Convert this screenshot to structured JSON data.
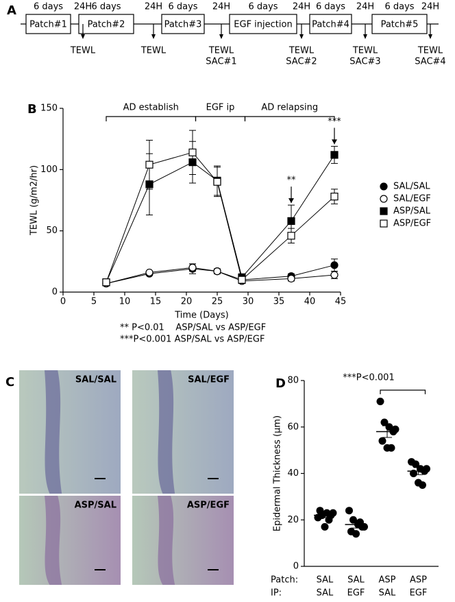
{
  "timeline": {
    "panel_label": "A",
    "stages": [
      {
        "label": "Patch#1",
        "duration": "6 days"
      },
      {
        "label": "Patch#2",
        "duration": "6 days"
      },
      {
        "label": "Patch#3",
        "duration": "6 days"
      },
      {
        "label": "EGF injection",
        "duration": "6 days"
      },
      {
        "label": "Patch#4",
        "duration": "6 days"
      },
      {
        "label": "Patch#5",
        "duration": "6 days"
      }
    ],
    "gaps": [
      "24H",
      "24H",
      "24H",
      "24H",
      "24H",
      "24H"
    ],
    "measurements": [
      [
        "TEWL"
      ],
      [
        "TEWL"
      ],
      [
        "TEWL",
        "SAC#1"
      ],
      [
        "TEWL",
        "SAC#2"
      ],
      [
        "TEWL",
        "SAC#3"
      ],
      [
        "TEWL",
        "SAC#4"
      ]
    ]
  },
  "histology": {
    "panel_label": "C",
    "images": [
      "SAL/SAL",
      "SAL/EGF",
      "ASP/SAL",
      "ASP/EGF"
    ]
  },
  "chart_data": [
    {
      "type": "line",
      "panel_label": "B",
      "x_label": "Time (Days)",
      "y_label": "TEWL (g/m2/hr)",
      "x": [
        7,
        14,
        21,
        25,
        29,
        37,
        44
      ],
      "series": [
        {
          "name": "SAL/SAL",
          "marker": "circle",
          "filled": true,
          "color": "#000000",
          "values": [
            7,
            15,
            19,
            17,
            10,
            13,
            22
          ],
          "errors": [
            1,
            1,
            4,
            2,
            1,
            2,
            5
          ]
        },
        {
          "name": "SAL/EGF",
          "marker": "circle",
          "filled": false,
          "color": "#000000",
          "values": [
            7,
            16,
            20,
            17,
            9,
            11,
            14
          ],
          "errors": [
            1,
            1,
            3,
            2,
            1,
            2,
            3
          ]
        },
        {
          "name": "ASP/SAL",
          "marker": "square",
          "filled": true,
          "color": "#000000",
          "values": [
            8,
            88,
            106,
            91,
            12,
            58,
            112
          ],
          "errors": [
            1,
            25,
            17,
            12,
            3,
            13,
            7
          ]
        },
        {
          "name": "ASP/EGF",
          "marker": "square",
          "filled": false,
          "color": "#000000",
          "values": [
            8,
            104,
            114,
            90,
            10,
            46,
            78
          ],
          "errors": [
            1,
            20,
            18,
            12,
            3,
            6,
            6
          ]
        }
      ],
      "xlim": [
        0,
        45
      ],
      "xticks": [
        0,
        5,
        10,
        15,
        20,
        25,
        30,
        35,
        40,
        45
      ],
      "ylim": [
        0,
        150
      ],
      "yticks": [
        0,
        50,
        100,
        150
      ],
      "legend": "right",
      "periods": [
        {
          "label": "AD establish",
          "start": 7,
          "end": 21.5
        },
        {
          "label": "EGF ip",
          "start": 21.5,
          "end": 29.5
        },
        {
          "label": "AD relapsing",
          "start": 29.5,
          "end": 44
        }
      ],
      "significance": [
        {
          "label": "**",
          "x": 37
        },
        {
          "label": "***",
          "x": 44
        }
      ],
      "footnotes": [
        "** P<0.01    ASP/SAL vs ASP/EGF",
        "***P<0.001 ASP/SAL vs ASP/EGF"
      ]
    },
    {
      "type": "dot",
      "panel_label": "D",
      "y_label": "Epidermal Thickness  (µm)",
      "row_labels": [
        "Patch:",
        "IP:"
      ],
      "categories": [
        [
          "SAL",
          "SAL",
          "ASP",
          "ASP"
        ],
        [
          "SAL",
          "EGF",
          "SAL",
          "EGF"
        ]
      ],
      "groups": [
        [
          21,
          22,
          23,
          22,
          24,
          17,
          20,
          23
        ],
        [
          24,
          20,
          18,
          17,
          15,
          14,
          19,
          17
        ],
        [
          71,
          62,
          60,
          58,
          54,
          51,
          51,
          59
        ],
        [
          45,
          44,
          42,
          41,
          40,
          36,
          35,
          42
        ]
      ],
      "means": [
        22,
        18,
        58,
        41
      ],
      "sems": [
        1,
        1.5,
        2.5,
        1.5
      ],
      "color": "#000000",
      "ylim": [
        0,
        80
      ],
      "yticks": [
        0,
        20,
        40,
        60,
        80
      ],
      "comparison": {
        "label": "***P<0.001",
        "groups": [
          2,
          3
        ]
      }
    }
  ]
}
